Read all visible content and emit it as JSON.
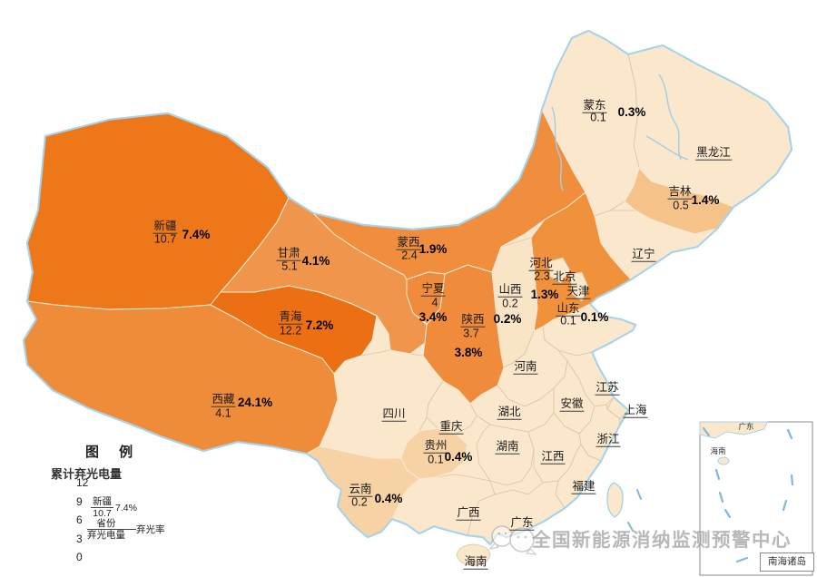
{
  "watermark": {
    "text": "全国新能源消纳监测预警中心",
    "logo_icon": "chat-bubbles-logo"
  },
  "legend": {
    "title": "图 例",
    "subtitle": "累计弃光电量",
    "ticks": [
      "12",
      "9",
      "6",
      "3",
      "0"
    ],
    "scale_color_high": "#EB6E10",
    "scale_color_low": "#FDF4E8",
    "example": {
      "name": "新疆",
      "value": "10.7",
      "pct": "7.4%"
    },
    "key": {
      "name": "省份",
      "value": "弃光电量",
      "pct": "弃光率"
    }
  },
  "inset": {
    "label": "南海诸岛",
    "guangdong_label": "广东",
    "hainan_label": "海南"
  },
  "chart_data": {
    "type": "choropleth_map",
    "title": "累计弃光电量 (choropleth of China, 弃光电量 value + 弃光率 percent per province)",
    "scale": {
      "label": "累计弃光电量",
      "min": 0,
      "max": 12,
      "ticks": [
        12,
        9,
        6,
        3,
        0
      ]
    },
    "colors": {
      "no_data_fill": "#FBE7CC",
      "coast_stroke": "#A6D3EA",
      "border_pale": "#D8C5A8",
      "border_colored": "#FAEBD7"
    },
    "provinces": [
      {
        "id": "heilongjiang",
        "name": "黑龙江",
        "value": null,
        "pct": null,
        "color": "#FBE7CC"
      },
      {
        "id": "mengdong",
        "name": "蒙东",
        "value": "0.1",
        "pct": "0.3%",
        "color": "#FBE7CC"
      },
      {
        "id": "liaoning",
        "name": "辽宁",
        "value": null,
        "pct": null,
        "color": "#FBE7CC"
      },
      {
        "id": "shandong",
        "name": "山东",
        "value": "0.1",
        "pct": "0.1%",
        "color": "#FBE7CC"
      },
      {
        "id": "henan",
        "name": "河南",
        "value": null,
        "pct": null,
        "color": "#FBE7CC"
      },
      {
        "id": "jiangsu",
        "name": "江苏",
        "value": null,
        "pct": null,
        "color": "#FBE7CC"
      },
      {
        "id": "anhui",
        "name": "安徽",
        "value": null,
        "pct": null,
        "color": "#FBE7CC"
      },
      {
        "id": "shanghai",
        "name": "上海",
        "value": null,
        "pct": null,
        "color": "#FBE7CC"
      },
      {
        "id": "zhejiang",
        "name": "浙江",
        "value": null,
        "pct": null,
        "color": "#FBE7CC"
      },
      {
        "id": "hubei",
        "name": "湖北",
        "value": null,
        "pct": null,
        "color": "#FBE7CC"
      },
      {
        "id": "hunan",
        "name": "湖南",
        "value": null,
        "pct": null,
        "color": "#FBE7CC"
      },
      {
        "id": "jiangxi",
        "name": "江西",
        "value": null,
        "pct": null,
        "color": "#FBE7CC"
      },
      {
        "id": "fujian",
        "name": "福建",
        "value": null,
        "pct": null,
        "color": "#FBE7CC"
      },
      {
        "id": "guangdong",
        "name": "广东",
        "value": null,
        "pct": null,
        "color": "#FBE7CC"
      },
      {
        "id": "guangxi",
        "name": "广西",
        "value": null,
        "pct": null,
        "color": "#FBE7CC"
      },
      {
        "id": "sichuan",
        "name": "四川",
        "value": null,
        "pct": null,
        "color": "#FBE7CC"
      },
      {
        "id": "chongqing",
        "name": "重庆",
        "value": null,
        "pct": null,
        "color": "#FBE7CC"
      },
      {
        "id": "hainan",
        "name": "海南",
        "value": null,
        "pct": null,
        "color": "#FBE7CC"
      },
      {
        "id": "shanxi",
        "name": "山西",
        "value": "0.2",
        "pct": "0.2%",
        "color": "#FAE4C6"
      },
      {
        "id": "xinjiang",
        "name": "新疆",
        "value": "10.7",
        "pct": "7.4%",
        "color": "#ED7719"
      },
      {
        "id": "xizang",
        "name": "西藏",
        "value": "4.1",
        "pct": "24.1%",
        "color": "#EF8C3A"
      },
      {
        "id": "qinghai",
        "name": "青海",
        "value": "12.2",
        "pct": "7.2%",
        "color": "#EC7013"
      },
      {
        "id": "gansu",
        "name": "甘肃",
        "value": "5.1",
        "pct": "4.1%",
        "color": "#F0964C"
      },
      {
        "id": "mengxi",
        "name": "蒙西",
        "value": "2.4",
        "pct": "1.9%",
        "color": "#F08E3E"
      },
      {
        "id": "ningxia",
        "name": "宁夏",
        "value": "4",
        "pct": "3.4%",
        "color": "#EF8B3B"
      },
      {
        "id": "shaanxi",
        "name": "陕西",
        "value": "3.7",
        "pct": "3.8%",
        "color": "#EF8B3B"
      },
      {
        "id": "hebei",
        "name": "河北",
        "value": "2.3",
        "pct": "1.3%",
        "color": "#F0913C"
      },
      {
        "id": "beijing",
        "name": "北京",
        "value": null,
        "pct": null,
        "color": "#FBE7CC"
      },
      {
        "id": "tianjin",
        "name": "天津",
        "value": null,
        "pct": null,
        "color": "#FBE7CC"
      },
      {
        "id": "jilin",
        "name": "吉林",
        "value": "0.5",
        "pct": "1.4%",
        "color": "#F5C28A"
      },
      {
        "id": "guizhou",
        "name": "贵州",
        "value": "0.1",
        "pct": "0.4%",
        "color": "#F7D2A4"
      },
      {
        "id": "yunnan",
        "name": "云南",
        "value": "0.2",
        "pct": "0.4%",
        "color": "#F7D2A4"
      }
    ]
  }
}
